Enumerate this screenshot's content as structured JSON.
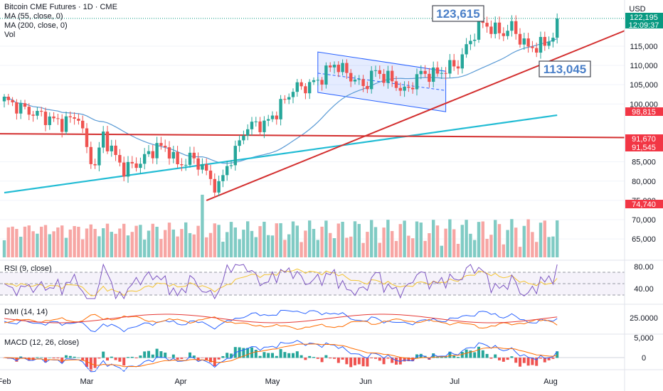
{
  "header": {
    "title": "Bitcoin CME Futures · 1D · CME",
    "indicators": [
      "MA (55, close, 0)",
      "MA (200, close, 0)",
      "Vol"
    ],
    "currency": "USD"
  },
  "price_scale": {
    "ticks": [
      "115,000",
      "110,000",
      "105,000",
      "100,000",
      "85,000",
      "80,000",
      "75,000",
      "70,000",
      "65,000"
    ],
    "badges": [
      {
        "label": "122,195",
        "sub": "12:09:37",
        "color": "#089981",
        "value": 122195
      },
      {
        "label": "98,815",
        "color": "#f23645",
        "value": 98815
      },
      {
        "label": "91,670",
        "color": "#f23645",
        "value": 91670
      },
      {
        "label": "91,545",
        "color": "#f23645",
        "value": 91545
      },
      {
        "label": "74,740",
        "color": "#f23645",
        "value": 74740
      }
    ]
  },
  "annotations": [
    {
      "label": "123,615",
      "value": 123615
    },
    {
      "label": "113,045",
      "value": 113045
    }
  ],
  "time_axis": [
    "Feb",
    "Mar",
    "Apr",
    "May",
    "Jun",
    "Jul",
    "Aug"
  ],
  "panes": {
    "rsi": {
      "title": "RSI (9, close)",
      "ticks": [
        "80.00",
        "40.00"
      ]
    },
    "dmi": {
      "title": "DMI (14, 14)",
      "ticks": [
        "25.0000"
      ]
    },
    "macd": {
      "title": "MACD (12, 26, close)",
      "ticks": [
        "5,000",
        "0"
      ]
    }
  },
  "colors": {
    "up": "#26a69a",
    "down": "#ef5350",
    "ma55": "#5b9bd5",
    "ma200": "#22bcd4",
    "trend": "#d32f2f",
    "channel": "#2962ff"
  },
  "chart_data": {
    "type": "candlestick",
    "series": [
      {
        "name": "MA (55, close, 0)"
      },
      {
        "name": "MA (200, close, 0)"
      },
      {
        "name": "Vol"
      }
    ],
    "x_range": [
      "Feb",
      "Aug"
    ],
    "ylim": [
      62000,
      126000
    ],
    "horizontal_level": 91600,
    "highs_marked": [
      123615,
      113045
    ],
    "grid": false
  }
}
